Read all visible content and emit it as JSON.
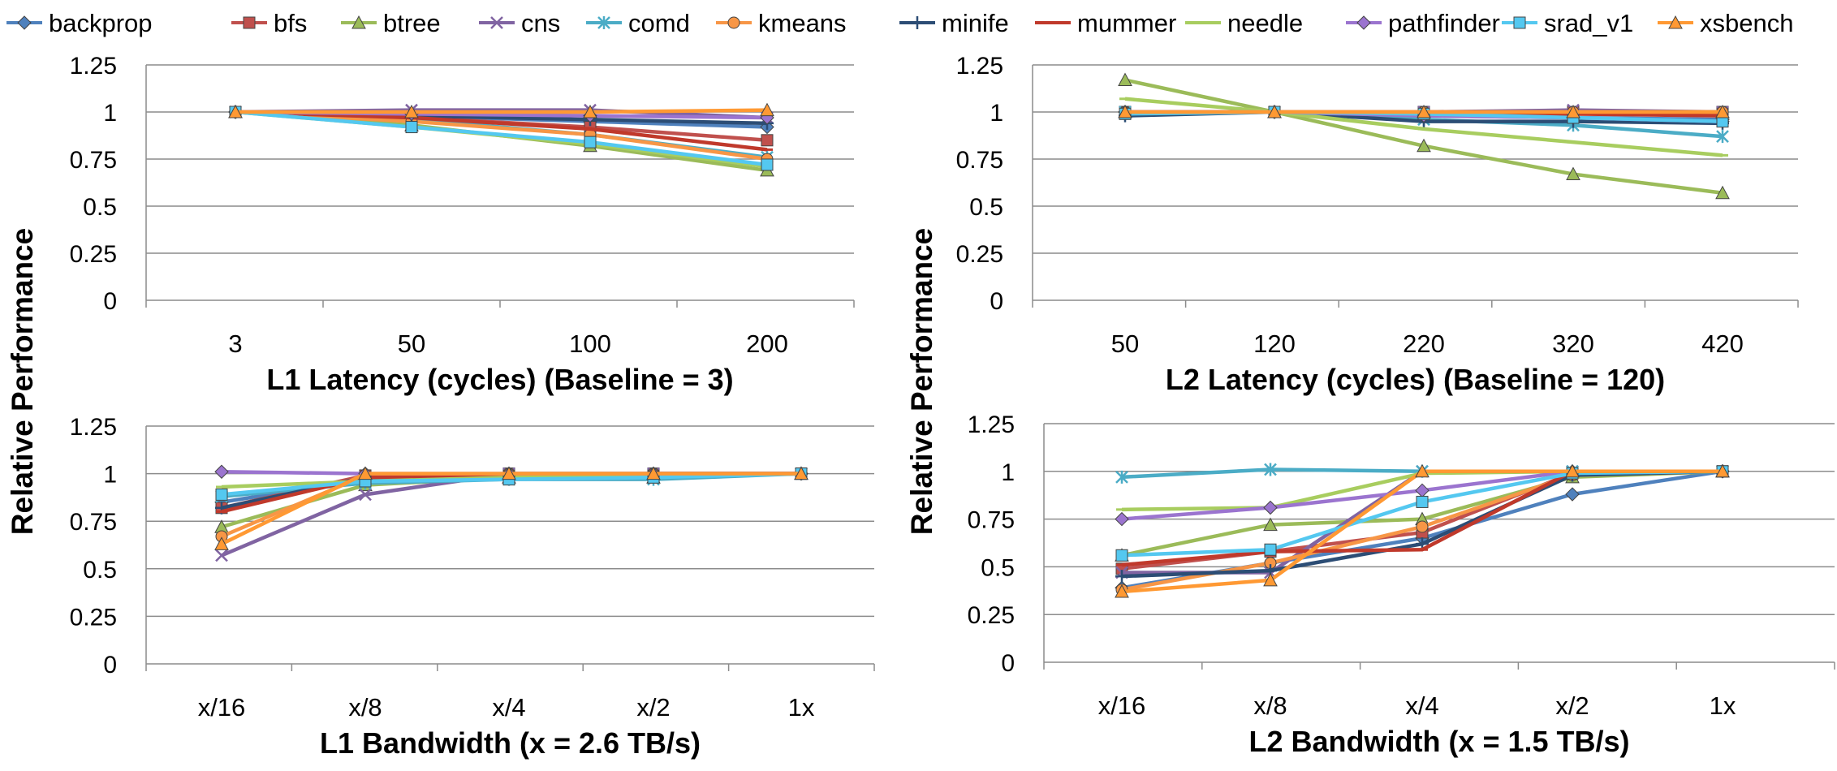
{
  "legend": {
    "placement": "top",
    "entries": [
      {
        "name": "backprop",
        "color": "#4F81BD",
        "marker": "diamond"
      },
      {
        "name": "bfs",
        "color": "#C0504D",
        "marker": "square"
      },
      {
        "name": "btree",
        "color": "#9BBB59",
        "marker": "triangle"
      },
      {
        "name": "cns",
        "color": "#8064A2",
        "marker": "x"
      },
      {
        "name": "comd",
        "color": "#4BACC6",
        "marker": "star"
      },
      {
        "name": "kmeans",
        "color": "#F79646",
        "marker": "circle"
      },
      {
        "name": "minife",
        "color": "#2C4D75",
        "marker": "plus"
      },
      {
        "name": "mummer",
        "color": "#C0392B",
        "marker": "dash"
      },
      {
        "name": "needle",
        "color": "#A8CD5F",
        "marker": "dash"
      },
      {
        "name": "pathfinder",
        "color": "#9B74CF",
        "marker": "diamond"
      },
      {
        "name": "srad_v1",
        "color": "#54C8F0",
        "marker": "square"
      },
      {
        "name": "xsbench",
        "color": "#FF9933",
        "marker": "triangle"
      }
    ]
  },
  "chart_data": [
    {
      "type": "line",
      "title": "",
      "xlabel": "L1 Latency (cycles) (Baseline = 3)",
      "ylabel": "Relative Performance",
      "categories": [
        "3",
        "50",
        "100",
        "200"
      ],
      "ylim": [
        0,
        1.25
      ],
      "yticks": [
        "0",
        "0.25",
        "0.5",
        "0.75",
        "1",
        "1.25"
      ],
      "grid": true,
      "series": [
        {
          "name": "backprop",
          "values": [
            1.0,
            0.98,
            0.95,
            0.92
          ]
        },
        {
          "name": "bfs",
          "values": [
            1.0,
            0.97,
            0.92,
            0.85
          ]
        },
        {
          "name": "btree",
          "values": [
            1.0,
            0.93,
            0.82,
            0.69
          ]
        },
        {
          "name": "cns",
          "values": [
            1.0,
            1.01,
            1.01,
            0.97
          ]
        },
        {
          "name": "comd",
          "values": [
            1.0,
            0.96,
            0.88,
            0.76
          ]
        },
        {
          "name": "kmeans",
          "values": [
            1.0,
            0.95,
            0.88,
            0.75
          ]
        },
        {
          "name": "minife",
          "values": [
            1.0,
            0.98,
            0.96,
            0.94
          ]
        },
        {
          "name": "mummer",
          "values": [
            1.0,
            0.97,
            0.91,
            0.8
          ]
        },
        {
          "name": "needle",
          "values": [
            1.0,
            0.92,
            0.83,
            0.71
          ]
        },
        {
          "name": "pathfinder",
          "values": [
            1.0,
            0.99,
            0.98,
            0.97
          ]
        },
        {
          "name": "srad_v1",
          "values": [
            1.0,
            0.92,
            0.84,
            0.72
          ]
        },
        {
          "name": "xsbench",
          "values": [
            1.0,
            1.0,
            1.0,
            1.01
          ]
        }
      ]
    },
    {
      "type": "line",
      "title": "",
      "xlabel": "L2 Latency (cycles) (Baseline = 120)",
      "ylabel": "Relative Performance",
      "categories": [
        "50",
        "120",
        "220",
        "320",
        "420"
      ],
      "ylim": [
        0,
        1.25
      ],
      "yticks": [
        "0",
        "0.25",
        "0.5",
        "0.75",
        "1",
        "1.25"
      ],
      "grid": true,
      "series": [
        {
          "name": "backprop",
          "values": [
            1.0,
            1.0,
            0.98,
            0.97,
            0.96
          ]
        },
        {
          "name": "bfs",
          "values": [
            1.0,
            1.0,
            1.0,
            1.0,
            1.0
          ]
        },
        {
          "name": "btree",
          "values": [
            1.17,
            1.0,
            0.82,
            0.67,
            0.57
          ]
        },
        {
          "name": "cns",
          "values": [
            1.0,
            1.0,
            1.0,
            1.01,
            1.0
          ]
        },
        {
          "name": "comd",
          "values": [
            1.0,
            1.0,
            0.96,
            0.93,
            0.87
          ]
        },
        {
          "name": "kmeans",
          "values": [
            1.0,
            1.0,
            1.0,
            1.0,
            1.0
          ]
        },
        {
          "name": "minife",
          "values": [
            0.98,
            1.0,
            0.95,
            0.95,
            0.94
          ]
        },
        {
          "name": "mummer",
          "values": [
            1.0,
            1.0,
            0.99,
            0.99,
            0.98
          ]
        },
        {
          "name": "needle",
          "values": [
            1.07,
            1.0,
            0.91,
            0.84,
            0.77
          ]
        },
        {
          "name": "pathfinder",
          "values": [
            1.0,
            1.0,
            0.98,
            0.97,
            0.95
          ]
        },
        {
          "name": "srad_v1",
          "values": [
            0.99,
            1.0,
            0.99,
            0.97,
            0.95
          ]
        },
        {
          "name": "xsbench",
          "values": [
            1.0,
            1.0,
            1.0,
            1.0,
            1.0
          ]
        }
      ]
    },
    {
      "type": "line",
      "title": "",
      "xlabel": "L1 Bandwidth (x = 2.6 TB/s)",
      "ylabel": "Relative Performance",
      "categories": [
        "x/16",
        "x/8",
        "x/4",
        "x/2",
        "1x"
      ],
      "ylim": [
        0,
        1.25
      ],
      "yticks": [
        "0",
        "0.25",
        "0.5",
        "0.75",
        "1",
        "1.25"
      ],
      "grid": true,
      "series": [
        {
          "name": "backprop",
          "values": [
            0.85,
            0.97,
            0.98,
            0.99,
            1.0
          ]
        },
        {
          "name": "bfs",
          "values": [
            0.82,
            0.99,
            1.0,
            1.0,
            1.0
          ]
        },
        {
          "name": "btree",
          "values": [
            0.72,
            0.94,
            0.98,
            0.98,
            1.0
          ]
        },
        {
          "name": "cns",
          "values": [
            0.57,
            0.89,
            1.0,
            1.0,
            1.0
          ]
        },
        {
          "name": "comd",
          "values": [
            0.88,
            0.95,
            0.97,
            0.97,
            1.0
          ]
        },
        {
          "name": "kmeans",
          "values": [
            0.67,
            0.99,
            1.0,
            1.0,
            1.0
          ]
        },
        {
          "name": "minife",
          "values": [
            0.82,
            0.98,
            0.99,
            1.0,
            1.0
          ]
        },
        {
          "name": "mummer",
          "values": [
            0.8,
            0.98,
            0.99,
            1.0,
            1.0
          ]
        },
        {
          "name": "needle",
          "values": [
            0.93,
            0.96,
            0.98,
            0.99,
            1.0
          ]
        },
        {
          "name": "pathfinder",
          "values": [
            1.01,
            1.0,
            1.0,
            1.0,
            1.0
          ]
        },
        {
          "name": "srad_v1",
          "values": [
            0.89,
            0.96,
            0.97,
            0.98,
            1.0
          ]
        },
        {
          "name": "xsbench",
          "values": [
            0.63,
            1.0,
            1.0,
            1.0,
            1.0
          ]
        }
      ]
    },
    {
      "type": "line",
      "title": "",
      "xlabel": "L2 Bandwidth (x = 1.5 TB/s)",
      "ylabel": "Relative Performance",
      "categories": [
        "x/16",
        "x/8",
        "x/4",
        "x/2",
        "1x"
      ],
      "ylim": [
        0,
        1.25
      ],
      "yticks": [
        "0",
        "0.25",
        "0.5",
        "0.75",
        "1",
        "1.25"
      ],
      "grid": true,
      "series": [
        {
          "name": "backprop",
          "values": [
            0.39,
            0.52,
            0.65,
            0.88,
            1.0
          ]
        },
        {
          "name": "bfs",
          "values": [
            0.49,
            0.58,
            0.68,
            0.99,
            1.0
          ]
        },
        {
          "name": "btree",
          "values": [
            0.56,
            0.72,
            0.75,
            0.97,
            1.0
          ]
        },
        {
          "name": "cns",
          "values": [
            0.47,
            0.47,
            1.0,
            1.0,
            1.0
          ]
        },
        {
          "name": "comd",
          "values": [
            0.97,
            1.01,
            1.0,
            1.0,
            1.0
          ]
        },
        {
          "name": "kmeans",
          "values": [
            0.38,
            0.52,
            0.71,
            0.98,
            1.0
          ]
        },
        {
          "name": "minife",
          "values": [
            0.45,
            0.48,
            0.62,
            0.98,
            1.0
          ]
        },
        {
          "name": "mummer",
          "values": [
            0.51,
            0.58,
            0.59,
            1.0,
            1.0
          ]
        },
        {
          "name": "needle",
          "values": [
            0.8,
            0.81,
            0.99,
            1.0,
            1.0
          ]
        },
        {
          "name": "pathfinder",
          "values": [
            0.75,
            0.81,
            0.9,
            1.0,
            1.0
          ]
        },
        {
          "name": "srad_v1",
          "values": [
            0.56,
            0.59,
            0.84,
            0.99,
            1.0
          ]
        },
        {
          "name": "xsbench",
          "values": [
            0.37,
            0.43,
            1.0,
            1.0,
            1.0
          ]
        }
      ]
    }
  ]
}
